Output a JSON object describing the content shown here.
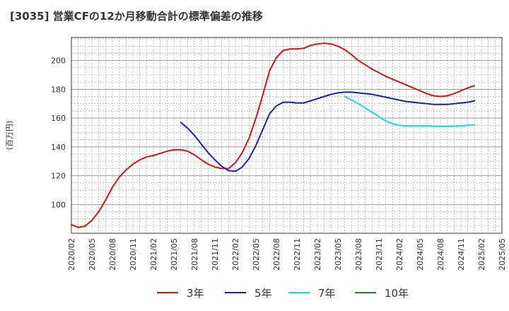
{
  "chart_data": {
    "type": "line",
    "title": "[3035]  営業CFの12か月移動合計の標準偏差の推移",
    "ylabel": "(百万円)",
    "xlabel": "",
    "xlim": [
      "2020/02",
      "2025/05"
    ],
    "ylim": [
      80,
      216
    ],
    "grid": true,
    "legend_position": "bottom",
    "x_tick_labels": [
      "2020/02",
      "2020/05",
      "2020/08",
      "2020/11",
      "2021/02",
      "2021/05",
      "2021/08",
      "2021/11",
      "2022/02",
      "2022/05",
      "2022/08",
      "2022/11",
      "2023/02",
      "2023/05",
      "2023/08",
      "2023/11",
      "2024/02",
      "2024/05",
      "2024/08",
      "2024/11",
      "2025/02",
      "2025/05"
    ],
    "y_ticks": [
      100,
      120,
      140,
      160,
      180,
      200
    ],
    "series": [
      {
        "name": "3年",
        "color": "#dd1111",
        "points": [
          [
            "2020/02",
            86
          ],
          [
            "2020/03",
            84
          ],
          [
            "2020/04",
            85
          ],
          [
            "2020/05",
            89
          ],
          [
            "2020/06",
            95
          ],
          [
            "2020/07",
            103
          ],
          [
            "2020/08",
            112
          ],
          [
            "2020/09",
            119
          ],
          [
            "2020/10",
            124
          ],
          [
            "2020/11",
            128
          ],
          [
            "2020/12",
            131
          ],
          [
            "2021/01",
            133
          ],
          [
            "2021/02",
            134
          ],
          [
            "2021/03",
            135.5
          ],
          [
            "2021/04",
            137
          ],
          [
            "2021/05",
            138
          ],
          [
            "2021/06",
            138
          ],
          [
            "2021/07",
            137
          ],
          [
            "2021/08",
            134.5
          ],
          [
            "2021/09",
            131
          ],
          [
            "2021/10",
            128
          ],
          [
            "2021/11",
            126
          ],
          [
            "2021/12",
            125
          ],
          [
            "2022/01",
            125
          ],
          [
            "2022/02",
            129
          ],
          [
            "2022/03",
            136
          ],
          [
            "2022/04",
            146
          ],
          [
            "2022/05",
            160
          ],
          [
            "2022/06",
            176
          ],
          [
            "2022/07",
            193
          ],
          [
            "2022/08",
            202
          ],
          [
            "2022/09",
            207
          ],
          [
            "2022/10",
            208
          ],
          [
            "2022/11",
            208
          ],
          [
            "2022/12",
            208.5
          ],
          [
            "2023/01",
            210.5
          ],
          [
            "2023/02",
            211.5
          ],
          [
            "2023/03",
            212
          ],
          [
            "2023/04",
            211.5
          ],
          [
            "2023/05",
            210
          ],
          [
            "2023/06",
            207.5
          ],
          [
            "2023/07",
            204
          ],
          [
            "2023/08",
            200
          ],
          [
            "2023/09",
            197
          ],
          [
            "2023/10",
            194
          ],
          [
            "2023/11",
            191.5
          ],
          [
            "2023/12",
            189
          ],
          [
            "2024/01",
            187
          ],
          [
            "2024/02",
            185
          ],
          [
            "2024/03",
            183
          ],
          [
            "2024/04",
            181
          ],
          [
            "2024/05",
            179
          ],
          [
            "2024/06",
            177
          ],
          [
            "2024/07",
            175.5
          ],
          [
            "2024/08",
            175
          ],
          [
            "2024/09",
            175.5
          ],
          [
            "2024/10",
            177
          ],
          [
            "2024/11",
            179
          ],
          [
            "2024/12",
            181
          ],
          [
            "2025/01",
            182.5
          ]
        ]
      },
      {
        "name": "5年",
        "color": "#1122bb",
        "points": [
          [
            "2021/06",
            157
          ],
          [
            "2021/07",
            153
          ],
          [
            "2021/08",
            148
          ],
          [
            "2021/09",
            142
          ],
          [
            "2021/10",
            136
          ],
          [
            "2021/11",
            131
          ],
          [
            "2021/12",
            126.5
          ],
          [
            "2022/01",
            123.5
          ],
          [
            "2022/02",
            123
          ],
          [
            "2022/03",
            126
          ],
          [
            "2022/04",
            132
          ],
          [
            "2022/05",
            141
          ],
          [
            "2022/06",
            152
          ],
          [
            "2022/07",
            163
          ],
          [
            "2022/08",
            168.5
          ],
          [
            "2022/09",
            171
          ],
          [
            "2022/10",
            171
          ],
          [
            "2022/11",
            170.5
          ],
          [
            "2022/12",
            170.5
          ],
          [
            "2023/01",
            172
          ],
          [
            "2023/02",
            173.5
          ],
          [
            "2023/03",
            175
          ],
          [
            "2023/04",
            176.5
          ],
          [
            "2023/05",
            177.5
          ],
          [
            "2023/06",
            178
          ],
          [
            "2023/07",
            178
          ],
          [
            "2023/08",
            177.5
          ],
          [
            "2023/09",
            177
          ],
          [
            "2023/10",
            176.5
          ],
          [
            "2023/11",
            175.5
          ],
          [
            "2023/12",
            174.5
          ],
          [
            "2024/01",
            173.5
          ],
          [
            "2024/02",
            172.5
          ],
          [
            "2024/03",
            171.5
          ],
          [
            "2024/04",
            171
          ],
          [
            "2024/05",
            170.5
          ],
          [
            "2024/06",
            170
          ],
          [
            "2024/07",
            169.5
          ],
          [
            "2024/08",
            169.5
          ],
          [
            "2024/09",
            169.5
          ],
          [
            "2024/10",
            170
          ],
          [
            "2024/11",
            170.5
          ],
          [
            "2024/12",
            171
          ],
          [
            "2025/01",
            172
          ]
        ]
      },
      {
        "name": "7年",
        "color": "#11dddd",
        "points": [
          [
            "2023/06",
            175
          ],
          [
            "2023/07",
            172.5
          ],
          [
            "2023/08",
            170
          ],
          [
            "2023/09",
            167
          ],
          [
            "2023/10",
            164
          ],
          [
            "2023/11",
            161
          ],
          [
            "2023/12",
            158
          ],
          [
            "2024/01",
            156
          ],
          [
            "2024/02",
            155
          ],
          [
            "2024/03",
            154.5
          ],
          [
            "2024/04",
            154.5
          ],
          [
            "2024/05",
            154.5
          ],
          [
            "2024/06",
            154.5
          ],
          [
            "2024/07",
            154.3
          ],
          [
            "2024/08",
            154.2
          ],
          [
            "2024/09",
            154.2
          ],
          [
            "2024/10",
            154.3
          ],
          [
            "2024/11",
            154.5
          ],
          [
            "2024/12",
            155
          ],
          [
            "2025/01",
            155.5
          ]
        ]
      },
      {
        "name": "10年",
        "color": "#228822",
        "points": []
      }
    ]
  }
}
